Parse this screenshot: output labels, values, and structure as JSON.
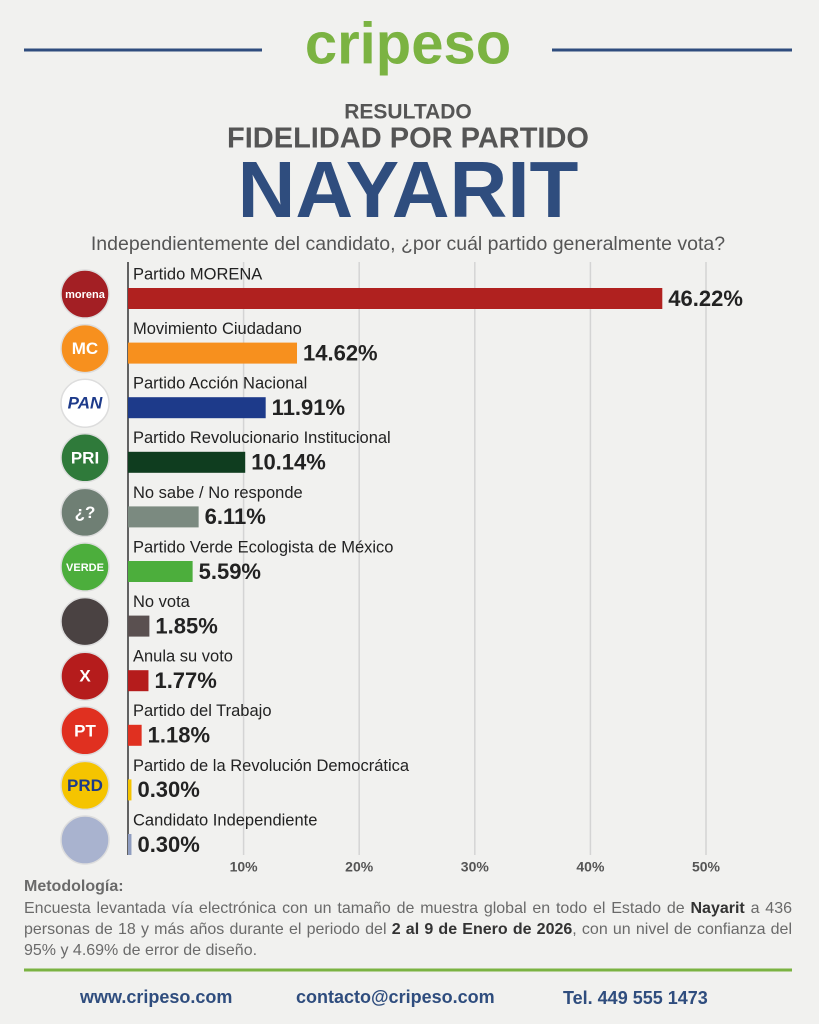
{
  "header": {
    "logo": "cripeso",
    "kicker": "RESULTADO",
    "title": "FIDELIDAD POR PARTIDO",
    "state": "NAYARIT",
    "question": "Independientemente del candidato, ¿por cuál partido generalmente vota?"
  },
  "chart_data": {
    "type": "hbar",
    "categories": [
      "Partido MORENA",
      "Movimiento Ciudadano",
      "Partido Acción Nacional",
      "Partido Revolucionario Institucional",
      "No sabe / No responde",
      "Partido Verde Ecologista de México",
      "No vota",
      "Anula su voto",
      "Partido del Trabajo",
      "Partido de la Revolución Democrática",
      "Candidato Independiente"
    ],
    "values": [
      46.22,
      14.62,
      11.91,
      10.14,
      6.11,
      5.59,
      1.85,
      1.77,
      1.18,
      0.3,
      0.3
    ],
    "value_labels": [
      "46.22%",
      "14.62%",
      "11.91%",
      "10.14%",
      "6.11%",
      "5.59%",
      "1.85%",
      "1.77%",
      "1.18%",
      "0.30%",
      "0.30%"
    ],
    "colors": [
      "#b0211f",
      "#f7901e",
      "#1d3a8a",
      "#0f3d1f",
      "#7b8a80",
      "#4cae3c",
      "#5a5050",
      "#b51c1c",
      "#e03020",
      "#f5c400",
      "#8f9dc0"
    ],
    "xlim": [
      0,
      50
    ],
    "xticks": [
      {
        "value": 10,
        "label": "10%"
      },
      {
        "value": 20,
        "label": "20%"
      },
      {
        "value": 30,
        "label": "30%"
      },
      {
        "value": 40,
        "label": "40%"
      },
      {
        "value": 50,
        "label": "50%"
      }
    ],
    "grid": true
  },
  "icons": [
    {
      "label": "morena",
      "color": "#a31f24"
    },
    {
      "label": "MC",
      "color": "#f7901e"
    },
    {
      "label": "PAN",
      "color": "#ffffff"
    },
    {
      "label": "PRI",
      "color": "#2f7a3a"
    },
    {
      "label": "¿?",
      "color": "#6f7f74"
    },
    {
      "label": "VERDE",
      "color": "#4cae3c"
    },
    {
      "color": "#4a4242"
    },
    {
      "label": "X",
      "color": "#b51c1c"
    },
    {
      "label": "PT",
      "color": "#e03020"
    },
    {
      "label": "PRD",
      "color": "#f5c400"
    },
    {
      "color": "#a9b3cf"
    }
  ],
  "methodology": {
    "title": "Metodología:",
    "segments": [
      {
        "text": "Encuesta levantada vía electrónica con un tamaño de muestra global en todo el Estado de "
      },
      {
        "text": "Nayarit",
        "bold": true
      },
      {
        "text": " a 436 personas de 18 y más años durante el periodo del "
      },
      {
        "text": "2 al 9 de Enero de 2026",
        "bold": true
      },
      {
        "text": ", con un nivel de confianza del 95% y 4.69% de error de diseño."
      }
    ]
  },
  "footer": {
    "web": "www.cripeso.com",
    "email": "contacto@cripeso.com",
    "phone": "Tel. 449 555 1473"
  }
}
